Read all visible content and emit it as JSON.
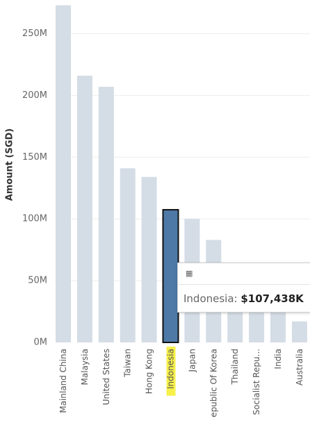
{
  "chart_data": {
    "type": "bar",
    "categories": [
      "Mainland China",
      "Malaysia",
      "United States",
      "Taiwan",
      "Hong Kong",
      "Indonesia",
      "Japan",
      "Republic Of Korea",
      "Thailand",
      "Socialist Repu...",
      "India",
      "Australia"
    ],
    "category_labels": [
      "Mainland China",
      "Malaysia",
      "United States",
      "Taiwan",
      "Hong Kong",
      "Indonesia",
      "Japan",
      "epublic Of Korea",
      "Thailand",
      "Socialist Repu...",
      "India",
      "Australia"
    ],
    "values": [
      273000000,
      216000000,
      207000000,
      141000000,
      134000000,
      107438000,
      100000000,
      83000000,
      63000000,
      51000000,
      30000000,
      17000000
    ],
    "ylabel": "Amount (SGD)",
    "ylim": [
      0,
      275000000
    ],
    "yticks": [
      0,
      50000000,
      100000000,
      150000000,
      200000000,
      250000000
    ],
    "ytick_labels": [
      "0M",
      "50M",
      "100M",
      "150M",
      "200M",
      "250M"
    ],
    "selected_index": 5,
    "highlighted_label_index": 5,
    "grid": true,
    "colors": {
      "bar": "#d4dde5",
      "selected": "#4e79a7",
      "highlight": "#f7f04a"
    }
  },
  "tooltip": {
    "icon": "table-icon",
    "label": "Indonesia:",
    "value": "$107,438K"
  }
}
